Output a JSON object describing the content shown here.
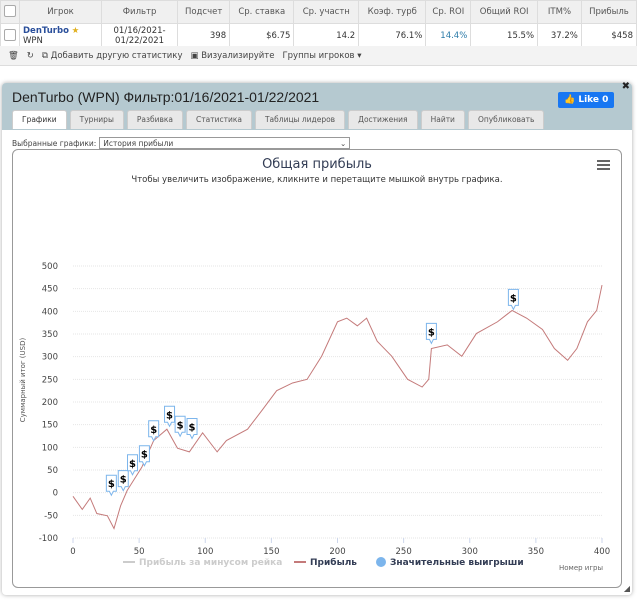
{
  "table": {
    "headers": [
      "Игрок",
      "Фильтр",
      "Подсчет",
      "Ср. ставка",
      "Ср. участн",
      "Коэф. турб",
      "Ср. ROI",
      "Общий ROI",
      "ITM%",
      "Прибыль"
    ],
    "row": {
      "player": "DenTurbo",
      "network": "WPN",
      "filter_line1": "01/16/2021-",
      "filter_line2": "01/22/2021",
      "count": "398",
      "avg_stake": "$6.75",
      "avg_entrants": "14.2",
      "turbo": "76.1%",
      "avg_roi": "14.4%",
      "total_roi": "15.5%",
      "itm": "37.2%",
      "profit": "$458"
    }
  },
  "toolbar": {
    "add_stat": "Добавить другую статистику",
    "visualize": "Визуализируйте",
    "groups": "Группы игроков"
  },
  "panel": {
    "title": "DenTurbo (WPN) Фильтр:01/16/2021-01/22/2021",
    "like": "Like 0",
    "tabs": [
      "Графики",
      "Турниры",
      "Разбивка",
      "Статистика",
      "Таблицы лидеров",
      "Достижения",
      "Найти",
      "Опубликовать"
    ],
    "selected_label": "Выбранные графики:",
    "selected_value": "История прибыли"
  },
  "chart_data": {
    "type": "line",
    "title": "Общая прибыль",
    "subtitle": "Чтобы увеличить изображение, кликните и перетащите мышкой внутрь графика.",
    "xlabel": "Номер игры",
    "ylabel": "Суммарный итог (USD)",
    "xlim": [
      0,
      400
    ],
    "ylim": [
      -100,
      500
    ],
    "xticks": [
      0,
      50,
      100,
      150,
      200,
      250,
      300,
      350,
      400
    ],
    "yticks": [
      -100,
      -50,
      0,
      50,
      100,
      150,
      200,
      250,
      300,
      350,
      400,
      450,
      500
    ],
    "grid": true,
    "legend": [
      "Прибыль за минусом рейка",
      "Прибыль",
      "Значительные выигрыши"
    ],
    "legend_placement": "bottom",
    "series": [
      {
        "name": "Прибыль",
        "color": "#c47a7a",
        "x": [
          0,
          7,
          13,
          18,
          26,
          31,
          36,
          41,
          52,
          61,
          71,
          79,
          88,
          98,
          109,
          116,
          132,
          143,
          154,
          166,
          177,
          188,
          200,
          207,
          215,
          222,
          230,
          241,
          253,
          264,
          269,
          271,
          283,
          294,
          305,
          321,
          332,
          343,
          355,
          364,
          374,
          381,
          389,
          396,
          400
        ],
        "y": [
          -8,
          -37,
          -12,
          -46,
          -51,
          -79,
          -29,
          5,
          56,
          115,
          140,
          98,
          90,
          132,
          90,
          115,
          140,
          182,
          225,
          242,
          250,
          301,
          377,
          385,
          368,
          385,
          334,
          301,
          250,
          233,
          250,
          318,
          326,
          301,
          351,
          377,
          402,
          385,
          360,
          318,
          292,
          318,
          377,
          402,
          458
        ]
      }
    ],
    "big_wins": {
      "x": [
        29,
        38,
        45,
        54,
        61,
        73,
        81,
        90,
        271,
        333
      ],
      "y": [
        -10,
        0,
        35,
        55,
        110,
        142,
        120,
        115,
        325,
        400
      ]
    }
  }
}
